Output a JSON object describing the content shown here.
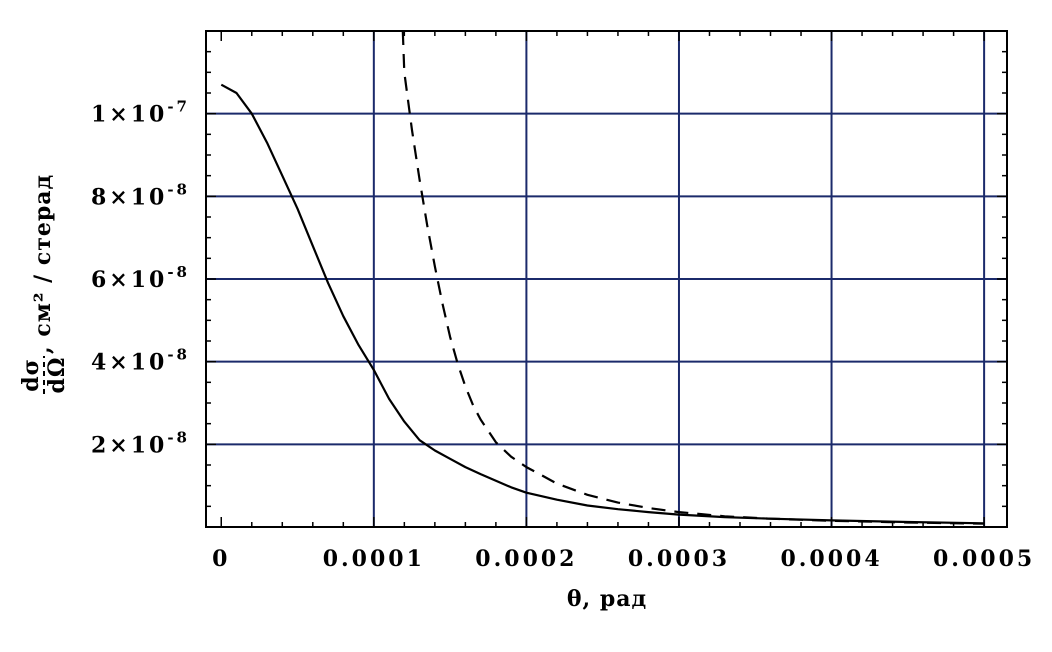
{
  "colors": {
    "grid": "#1b2a6b",
    "frame": "#000000",
    "curve": "#000000",
    "background": "#ffffff"
  },
  "chart_data": {
    "type": "line",
    "title": "",
    "xlabel": "θ, рад",
    "ylabel": {
      "numerator": "dσ",
      "denominator": "dΩ",
      "unit": ", см² / стерад"
    },
    "xlim": [
      -1e-05,
      0.000515
    ],
    "ylim": [
      0,
      1.2e-07
    ],
    "x_ticks": [
      0,
      0.0001,
      0.0002,
      0.0003,
      0.0004,
      0.0005
    ],
    "x_tick_labels": [
      "0",
      "0.0001",
      "0.0002",
      "0.0003",
      "0.0004",
      "0.0005"
    ],
    "y_ticks": [
      2e-08,
      4e-08,
      6e-08,
      8e-08,
      1e-07
    ],
    "y_tick_labels": [
      {
        "mantissa": "2",
        "exponent": "-8"
      },
      {
        "mantissa": "4",
        "exponent": "-8"
      },
      {
        "mantissa": "6",
        "exponent": "-8"
      },
      {
        "mantissa": "8",
        "exponent": "-8"
      },
      {
        "mantissa": "1",
        "exponent": "-7"
      }
    ],
    "grid": true,
    "legend": "none",
    "series": [
      {
        "style": "solid",
        "x": [
          0,
          1e-05,
          2e-05,
          3e-05,
          4e-05,
          5e-05,
          6e-05,
          7e-05,
          8e-05,
          9e-05,
          0.0001,
          0.00011,
          0.00012,
          0.00013,
          0.00014,
          0.00015,
          0.00016,
          0.00017,
          0.00018,
          0.00019,
          0.0002,
          0.00022,
          0.00024,
          0.00026,
          0.00028,
          0.0003,
          0.00033,
          0.00036,
          0.0004,
          0.00045,
          0.0005
        ],
        "y": [
          1.07e-07,
          1.05e-07,
          1e-07,
          9.3e-08,
          8.5e-08,
          7.7e-08,
          6.8e-08,
          5.9e-08,
          5.1e-08,
          4.4e-08,
          3.8e-08,
          3.1e-08,
          2.55e-08,
          2.1e-08,
          1.85e-08,
          1.65e-08,
          1.45e-08,
          1.28e-08,
          1.12e-08,
          9.6e-09,
          8.3e-09,
          6.6e-09,
          5.2e-09,
          4.3e-09,
          3.6e-09,
          3e-09,
          2.4e-09,
          2e-09,
          1.6e-09,
          1.2e-09,
          9e-10
        ]
      },
      {
        "style": "dashed",
        "x": [
          0.000119,
          0.00012,
          0.000125,
          0.00013,
          0.000135,
          0.00014,
          0.000145,
          0.00015,
          0.000155,
          0.00016,
          0.000165,
          0.00017,
          0.00018,
          0.00019,
          0.0002,
          0.00021,
          0.00022,
          0.00024,
          0.00026,
          0.00028,
          0.0003,
          0.00033,
          0.00036,
          0.0004,
          0.00045,
          0.0005
        ],
        "y": [
          1.2e-07,
          1.1e-07,
          9.6e-08,
          8.4e-08,
          7.3e-08,
          6.3e-08,
          5.4e-08,
          4.6e-08,
          3.95e-08,
          3.4e-08,
          2.95e-08,
          2.6e-08,
          2.05e-08,
          1.7e-08,
          1.45e-08,
          1.25e-08,
          1.05e-08,
          7.8e-09,
          5.9e-09,
          4.6e-09,
          3.6e-09,
          2.6e-09,
          2e-09,
          1.5e-09,
          1.1e-09,
          8e-10
        ]
      }
    ]
  }
}
